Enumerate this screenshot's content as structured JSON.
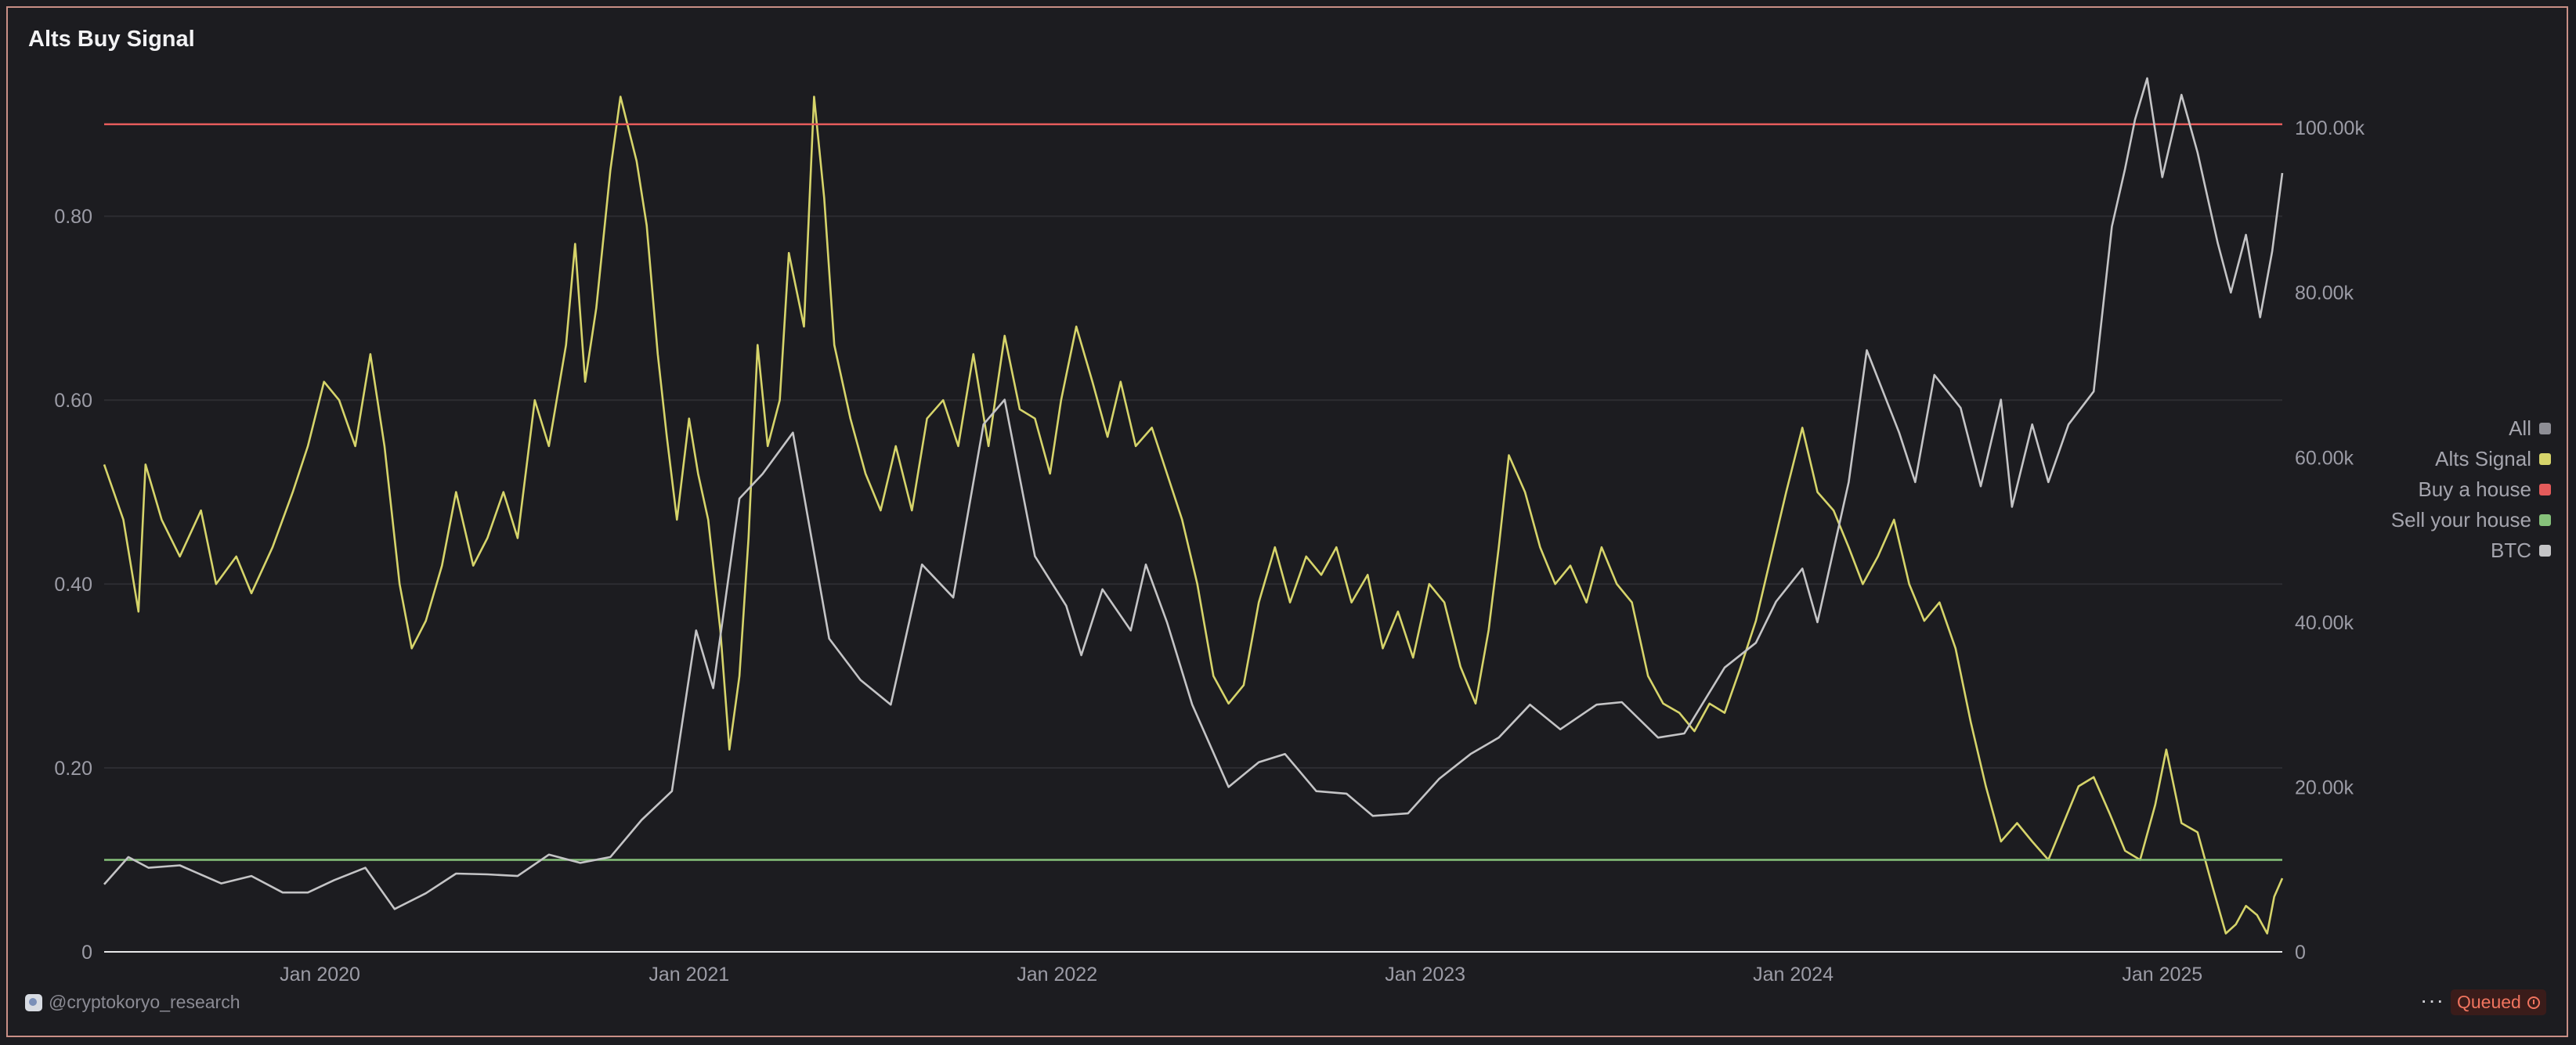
{
  "header": {
    "title": "Alts Buy Signal"
  },
  "footer": {
    "watermark": "@cryptokoryo_research",
    "more_label": "···",
    "status": "Queued"
  },
  "legend": {
    "items": [
      {
        "label": "All",
        "color": "#8e8e95"
      },
      {
        "label": "Alts Signal",
        "color": "#d6d46a"
      },
      {
        "label": "Buy a house",
        "color": "#e45b5b"
      },
      {
        "label": "Sell your house",
        "color": "#86c17a"
      },
      {
        "label": "BTC",
        "color": "#c4c4c6"
      }
    ]
  },
  "chart_data": {
    "type": "line",
    "title": "Alts Buy Signal",
    "x_ticks": [
      "Jan 2020",
      "Jan 2021",
      "Jan 2022",
      "Jan 2023",
      "Jan 2024",
      "Jan 2025"
    ],
    "x_range": [
      "2019-06-01",
      "2025-04-30"
    ],
    "y_left": {
      "ticks": [
        "0",
        "0.20",
        "0.40",
        "0.60",
        "0.80"
      ],
      "range": [
        0,
        0.95
      ]
    },
    "y_right": {
      "ticks": [
        "0",
        "20.00k",
        "40.00k",
        "60.00k",
        "80.00k",
        "100.00k"
      ],
      "range": [
        0,
        106000
      ]
    },
    "grid": true,
    "legend_position": "right",
    "series": [
      {
        "name": "Alts Signal",
        "axis": "left",
        "color": "#d6d46a",
        "points": [
          [
            "2019-06-01",
            0.53
          ],
          [
            "2019-06-20",
            0.47
          ],
          [
            "2019-07-05",
            0.37
          ],
          [
            "2019-07-12",
            0.53
          ],
          [
            "2019-07-28",
            0.47
          ],
          [
            "2019-08-15",
            0.43
          ],
          [
            "2019-09-05",
            0.48
          ],
          [
            "2019-09-20",
            0.4
          ],
          [
            "2019-10-10",
            0.43
          ],
          [
            "2019-10-25",
            0.39
          ],
          [
            "2019-11-15",
            0.44
          ],
          [
            "2019-12-05",
            0.5
          ],
          [
            "2019-12-20",
            0.55
          ],
          [
            "2020-01-05",
            0.62
          ],
          [
            "2020-01-20",
            0.6
          ],
          [
            "2020-02-05",
            0.55
          ],
          [
            "2020-02-20",
            0.65
          ],
          [
            "2020-03-05",
            0.55
          ],
          [
            "2020-03-20",
            0.4
          ],
          [
            "2020-04-01",
            0.33
          ],
          [
            "2020-04-15",
            0.36
          ],
          [
            "2020-05-01",
            0.42
          ],
          [
            "2020-05-15",
            0.5
          ],
          [
            "2020-06-01",
            0.42
          ],
          [
            "2020-06-15",
            0.45
          ],
          [
            "2020-07-01",
            0.5
          ],
          [
            "2020-07-15",
            0.45
          ],
          [
            "2020-08-01",
            0.6
          ],
          [
            "2020-08-15",
            0.55
          ],
          [
            "2020-09-01",
            0.66
          ],
          [
            "2020-09-10",
            0.77
          ],
          [
            "2020-09-20",
            0.62
          ],
          [
            "2020-10-01",
            0.7
          ],
          [
            "2020-10-15",
            0.85
          ],
          [
            "2020-10-25",
            0.93
          ],
          [
            "2020-11-10",
            0.86
          ],
          [
            "2020-11-20",
            0.79
          ],
          [
            "2020-12-01",
            0.65
          ],
          [
            "2020-12-10",
            0.56
          ],
          [
            "2020-12-20",
            0.47
          ],
          [
            "2021-01-01",
            0.58
          ],
          [
            "2021-01-10",
            0.52
          ],
          [
            "2021-01-20",
            0.47
          ],
          [
            "2021-02-01",
            0.35
          ],
          [
            "2021-02-10",
            0.22
          ],
          [
            "2021-02-20",
            0.3
          ],
          [
            "2021-03-01",
            0.45
          ],
          [
            "2021-03-10",
            0.66
          ],
          [
            "2021-03-20",
            0.55
          ],
          [
            "2021-04-01",
            0.6
          ],
          [
            "2021-04-10",
            0.76
          ],
          [
            "2021-04-25",
            0.68
          ],
          [
            "2021-05-05",
            0.93
          ],
          [
            "2021-05-15",
            0.82
          ],
          [
            "2021-05-25",
            0.66
          ],
          [
            "2021-06-10",
            0.58
          ],
          [
            "2021-06-25",
            0.52
          ],
          [
            "2021-07-10",
            0.48
          ],
          [
            "2021-07-25",
            0.55
          ],
          [
            "2021-08-10",
            0.48
          ],
          [
            "2021-08-25",
            0.58
          ],
          [
            "2021-09-10",
            0.6
          ],
          [
            "2021-09-25",
            0.55
          ],
          [
            "2021-10-10",
            0.65
          ],
          [
            "2021-10-25",
            0.55
          ],
          [
            "2021-11-10",
            0.67
          ],
          [
            "2021-11-25",
            0.59
          ],
          [
            "2021-12-10",
            0.58
          ],
          [
            "2021-12-25",
            0.52
          ],
          [
            "2022-01-05",
            0.6
          ],
          [
            "2022-01-20",
            0.68
          ],
          [
            "2022-02-05",
            0.62
          ],
          [
            "2022-02-20",
            0.56
          ],
          [
            "2022-03-05",
            0.62
          ],
          [
            "2022-03-20",
            0.55
          ],
          [
            "2022-04-05",
            0.57
          ],
          [
            "2022-04-20",
            0.52
          ],
          [
            "2022-05-05",
            0.47
          ],
          [
            "2022-05-20",
            0.4
          ],
          [
            "2022-06-05",
            0.3
          ],
          [
            "2022-06-20",
            0.27
          ],
          [
            "2022-07-05",
            0.29
          ],
          [
            "2022-07-20",
            0.38
          ],
          [
            "2022-08-05",
            0.44
          ],
          [
            "2022-08-20",
            0.38
          ],
          [
            "2022-09-05",
            0.43
          ],
          [
            "2022-09-20",
            0.41
          ],
          [
            "2022-10-05",
            0.44
          ],
          [
            "2022-10-20",
            0.38
          ],
          [
            "2022-11-05",
            0.41
          ],
          [
            "2022-11-20",
            0.33
          ],
          [
            "2022-12-05",
            0.37
          ],
          [
            "2022-12-20",
            0.32
          ],
          [
            "2023-01-05",
            0.4
          ],
          [
            "2023-01-20",
            0.38
          ],
          [
            "2023-02-05",
            0.31
          ],
          [
            "2023-02-20",
            0.27
          ],
          [
            "2023-03-05",
            0.35
          ],
          [
            "2023-03-15",
            0.44
          ],
          [
            "2023-03-25",
            0.54
          ],
          [
            "2023-04-10",
            0.5
          ],
          [
            "2023-04-25",
            0.44
          ],
          [
            "2023-05-10",
            0.4
          ],
          [
            "2023-05-25",
            0.42
          ],
          [
            "2023-06-10",
            0.38
          ],
          [
            "2023-06-25",
            0.44
          ],
          [
            "2023-07-10",
            0.4
          ],
          [
            "2023-07-25",
            0.38
          ],
          [
            "2023-08-10",
            0.3
          ],
          [
            "2023-08-25",
            0.27
          ],
          [
            "2023-09-10",
            0.26
          ],
          [
            "2023-09-25",
            0.24
          ],
          [
            "2023-10-10",
            0.27
          ],
          [
            "2023-10-25",
            0.26
          ],
          [
            "2023-11-10",
            0.31
          ],
          [
            "2023-11-25",
            0.36
          ],
          [
            "2023-12-10",
            0.43
          ],
          [
            "2023-12-25",
            0.5
          ],
          [
            "2024-01-10",
            0.57
          ],
          [
            "2024-01-25",
            0.5
          ],
          [
            "2024-02-10",
            0.48
          ],
          [
            "2024-02-25",
            0.44
          ],
          [
            "2024-03-10",
            0.4
          ],
          [
            "2024-03-25",
            0.43
          ],
          [
            "2024-04-10",
            0.47
          ],
          [
            "2024-04-25",
            0.4
          ],
          [
            "2024-05-10",
            0.36
          ],
          [
            "2024-05-25",
            0.38
          ],
          [
            "2024-06-10",
            0.33
          ],
          [
            "2024-06-25",
            0.25
          ],
          [
            "2024-07-10",
            0.18
          ],
          [
            "2024-07-25",
            0.12
          ],
          [
            "2024-08-10",
            0.14
          ],
          [
            "2024-08-25",
            0.12
          ],
          [
            "2024-09-10",
            0.1
          ],
          [
            "2024-09-25",
            0.14
          ],
          [
            "2024-10-10",
            0.18
          ],
          [
            "2024-10-25",
            0.19
          ],
          [
            "2024-11-10",
            0.15
          ],
          [
            "2024-11-25",
            0.11
          ],
          [
            "2024-12-10",
            0.1
          ],
          [
            "2024-12-25",
            0.16
          ],
          [
            "2025-01-05",
            0.22
          ],
          [
            "2025-01-20",
            0.14
          ],
          [
            "2025-02-05",
            0.13
          ],
          [
            "2025-02-20",
            0.07
          ],
          [
            "2025-03-05",
            0.02
          ],
          [
            "2025-03-15",
            0.03
          ],
          [
            "2025-03-25",
            0.05
          ],
          [
            "2025-04-05",
            0.04
          ],
          [
            "2025-04-15",
            0.02
          ],
          [
            "2025-04-22",
            0.06
          ],
          [
            "2025-04-30",
            0.08
          ]
        ]
      },
      {
        "name": "Buy a house",
        "axis": "left",
        "color": "#e45b5b",
        "constant": 0.9
      },
      {
        "name": "Sell your house",
        "axis": "left",
        "color": "#86c17a",
        "constant": 0.1
      },
      {
        "name": "BTC",
        "axis": "right",
        "color": "#c4c4c6",
        "points": [
          [
            "2019-06-01",
            8200
          ],
          [
            "2019-06-25",
            11500
          ],
          [
            "2019-07-15",
            10200
          ],
          [
            "2019-08-15",
            10500
          ],
          [
            "2019-09-25",
            8300
          ],
          [
            "2019-10-25",
            9200
          ],
          [
            "2019-11-25",
            7200
          ],
          [
            "2019-12-20",
            7200
          ],
          [
            "2020-01-15",
            8700
          ],
          [
            "2020-02-15",
            10200
          ],
          [
            "2020-03-15",
            5200
          ],
          [
            "2020-04-15",
            7100
          ],
          [
            "2020-05-15",
            9500
          ],
          [
            "2020-06-15",
            9400
          ],
          [
            "2020-07-15",
            9200
          ],
          [
            "2020-08-15",
            11800
          ],
          [
            "2020-09-15",
            10800
          ],
          [
            "2020-10-15",
            11500
          ],
          [
            "2020-11-15",
            16000
          ],
          [
            "2020-12-15",
            19500
          ],
          [
            "2021-01-08",
            39000
          ],
          [
            "2021-01-25",
            32000
          ],
          [
            "2021-02-20",
            55000
          ],
          [
            "2021-03-15",
            58000
          ],
          [
            "2021-04-14",
            63000
          ],
          [
            "2021-05-20",
            38000
          ],
          [
            "2021-06-20",
            33000
          ],
          [
            "2021-07-20",
            30000
          ],
          [
            "2021-08-20",
            47000
          ],
          [
            "2021-09-20",
            43000
          ],
          [
            "2021-10-20",
            64000
          ],
          [
            "2021-11-10",
            67000
          ],
          [
            "2021-12-10",
            48000
          ],
          [
            "2022-01-10",
            42000
          ],
          [
            "2022-01-25",
            36000
          ],
          [
            "2022-02-15",
            44000
          ],
          [
            "2022-03-15",
            39000
          ],
          [
            "2022-03-30",
            47000
          ],
          [
            "2022-04-20",
            40000
          ],
          [
            "2022-05-15",
            30000
          ],
          [
            "2022-06-20",
            20000
          ],
          [
            "2022-07-20",
            23000
          ],
          [
            "2022-08-15",
            24000
          ],
          [
            "2022-09-15",
            19500
          ],
          [
            "2022-10-15",
            19200
          ],
          [
            "2022-11-10",
            16500
          ],
          [
            "2022-12-15",
            16800
          ],
          [
            "2023-01-15",
            21000
          ],
          [
            "2023-02-15",
            24000
          ],
          [
            "2023-03-15",
            26000
          ],
          [
            "2023-04-15",
            30000
          ],
          [
            "2023-05-15",
            27000
          ],
          [
            "2023-06-20",
            30000
          ],
          [
            "2023-07-15",
            30300
          ],
          [
            "2023-08-20",
            26000
          ],
          [
            "2023-09-15",
            26500
          ],
          [
            "2023-10-25",
            34500
          ],
          [
            "2023-11-25",
            37500
          ],
          [
            "2023-12-15",
            42500
          ],
          [
            "2024-01-10",
            46500
          ],
          [
            "2024-01-25",
            40000
          ],
          [
            "2024-02-25",
            57000
          ],
          [
            "2024-03-14",
            73000
          ],
          [
            "2024-04-15",
            63000
          ],
          [
            "2024-05-01",
            57000
          ],
          [
            "2024-05-20",
            70000
          ],
          [
            "2024-06-15",
            66000
          ],
          [
            "2024-07-05",
            56500
          ],
          [
            "2024-07-25",
            67000
          ],
          [
            "2024-08-05",
            54000
          ],
          [
            "2024-08-25",
            64000
          ],
          [
            "2024-09-10",
            57000
          ],
          [
            "2024-09-30",
            64000
          ],
          [
            "2024-10-25",
            68000
          ],
          [
            "2024-11-12",
            88000
          ],
          [
            "2024-11-25",
            95000
          ],
          [
            "2024-12-05",
            101000
          ],
          [
            "2024-12-17",
            106000
          ],
          [
            "2025-01-01",
            94000
          ],
          [
            "2025-01-20",
            104000
          ],
          [
            "2025-02-05",
            97000
          ],
          [
            "2025-02-25",
            86000
          ],
          [
            "2025-03-10",
            80000
          ],
          [
            "2025-03-25",
            87000
          ],
          [
            "2025-04-08",
            77000
          ],
          [
            "2025-04-20",
            85000
          ],
          [
            "2025-04-30",
            94500
          ]
        ]
      }
    ]
  }
}
